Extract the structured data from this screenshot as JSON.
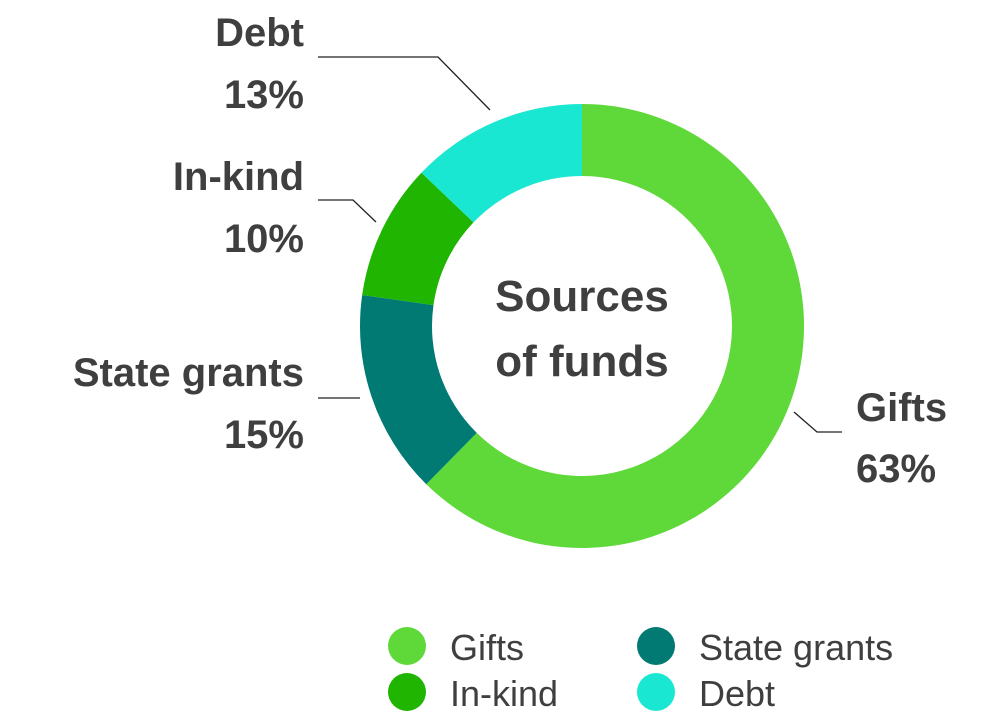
{
  "chart_data": {
    "type": "pie",
    "variant": "donut",
    "title": "Sources of funds",
    "title_lines": [
      "Sources",
      "of funds"
    ],
    "categories": [
      "Gifts",
      "State grants",
      "In-kind",
      "Debt"
    ],
    "values": [
      63,
      15,
      10,
      13
    ],
    "value_labels": [
      "63%",
      "15%",
      "10%",
      "13%"
    ],
    "colors": [
      "#5fd83a",
      "#007a72",
      "#1fb500",
      "#19e7d1"
    ],
    "legend": {
      "placement": "bottom",
      "entries": [
        "Gifts",
        "State grants",
        "In-kind",
        "Debt"
      ]
    }
  }
}
